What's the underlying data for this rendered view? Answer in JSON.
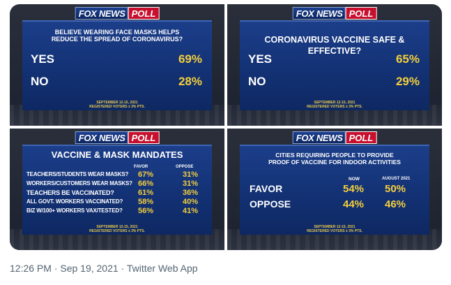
{
  "logo": {
    "fox": "FOX NEWS",
    "poll": "POLL"
  },
  "panels": [
    {
      "question": "BELIEVE WEARING FACE MASKS HELPS REDUCE THE SPREAD OF CORONAVIRUS?",
      "rows": [
        {
          "label": "YES",
          "value": "69%"
        },
        {
          "label": "NO",
          "value": "28%"
        }
      ],
      "date": "SEPTEMBER 12-15, 2021",
      "voters": "REGISTERED VOTERS ± 3% PTS."
    },
    {
      "question": "CORONAVIRUS VACCINE SAFE & EFFECTIVE?",
      "rows": [
        {
          "label": "YES",
          "value": "65%"
        },
        {
          "label": "NO",
          "value": "29%"
        }
      ],
      "date": "SEPTEMBER 12-15, 2021",
      "voters": "REGISTERED VOTERS ± 3% PTS."
    },
    {
      "question": "VACCINE & MASK MANDATES",
      "col1": "FAVOR",
      "col2": "OPPOSE",
      "rows": [
        {
          "label": "TEACHERS/STUDENTS WEAR MASKS?",
          "favor": "67%",
          "oppose": "31%"
        },
        {
          "label": "WORKERS/CUSTOMERS WEAR MASKS?",
          "favor": "66%",
          "oppose": "31%"
        },
        {
          "label": "TEACHERS BE VACCINATED?",
          "favor": "61%",
          "oppose": "36%"
        },
        {
          "label": "ALL GOVT. WORKERS VACCINATED?",
          "favor": "58%",
          "oppose": "40%"
        },
        {
          "label": "BIZ W/100+ WORKERS VAX/TESTED?",
          "favor": "56%",
          "oppose": "41%"
        }
      ],
      "date": "SEPTEMBER 12-15, 2021",
      "voters": "REGISTERED VOTERS ± 3% PTS."
    },
    {
      "question": "CITIES REQUIRING PEOPLE TO PROVIDE PROOF OF VACCINE FOR INDOOR ACTIVITIES",
      "col1": "NOW",
      "col2": "AUGUST 2021",
      "rows": [
        {
          "label": "FAVOR",
          "now": "54%",
          "aug": "50%"
        },
        {
          "label": "OPPOSE",
          "now": "44%",
          "aug": "46%"
        }
      ],
      "date": "SEPTEMBER 12-15, 2021",
      "voters": "REGISTERED VOTERS ± 3% PTS."
    }
  ],
  "footer": "12:26 PM · Sep 19, 2021 · Twitter Web App",
  "colors": {
    "board": "#123072",
    "value": "#f5cf3c",
    "poll_red": "#c8102e"
  }
}
